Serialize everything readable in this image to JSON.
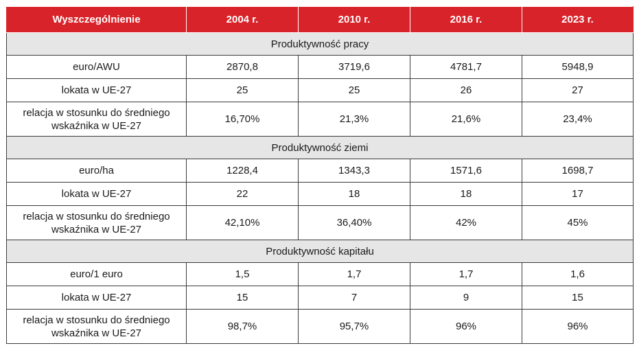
{
  "header": {
    "col0": "Wyszczególnienie",
    "years": [
      "2004 r.",
      "2010 r.",
      "2016 r.",
      "2023 r."
    ]
  },
  "colors": {
    "header_bg": "#d9232a",
    "section_bg": "#e6e6e6"
  },
  "sections": [
    {
      "title": "Produktywność pracy",
      "rows": [
        {
          "label": "euro/AWU",
          "values": [
            "2870,8",
            "3719,6",
            "4781,7",
            "5948,9"
          ]
        },
        {
          "label": "lokata w UE-27",
          "values": [
            "25",
            "25",
            "26",
            "27"
          ]
        },
        {
          "label": "relacja w stosunku do średniego wskaźnika w UE-27",
          "values": [
            "16,70%",
            "21,3%",
            "21,6%",
            "23,4%"
          ]
        }
      ]
    },
    {
      "title": "Produktywność ziemi",
      "rows": [
        {
          "label": "euro/ha",
          "values": [
            "1228,4",
            "1343,3",
            "1571,6",
            "1698,7"
          ]
        },
        {
          "label": "lokata w UE-27",
          "values": [
            "22",
            "18",
            "18",
            "17"
          ]
        },
        {
          "label": "relacja w stosunku do średniego wskaźnika w UE-27",
          "values": [
            "42,10%",
            "36,40%",
            "42%",
            "45%"
          ]
        }
      ]
    },
    {
      "title": "Produktywność kapitału",
      "rows": [
        {
          "label": "euro/1 euro",
          "values": [
            "1,5",
            "1,7",
            "1,7",
            "1,6"
          ]
        },
        {
          "label": "lokata w UE-27",
          "values": [
            "15",
            "7",
            "9",
            "15"
          ]
        },
        {
          "label": "relacja w stosunku do średniego wskaźnika w UE-27",
          "values": [
            "98,7%",
            "95,7%",
            "96%",
            "96%"
          ]
        }
      ]
    }
  ]
}
